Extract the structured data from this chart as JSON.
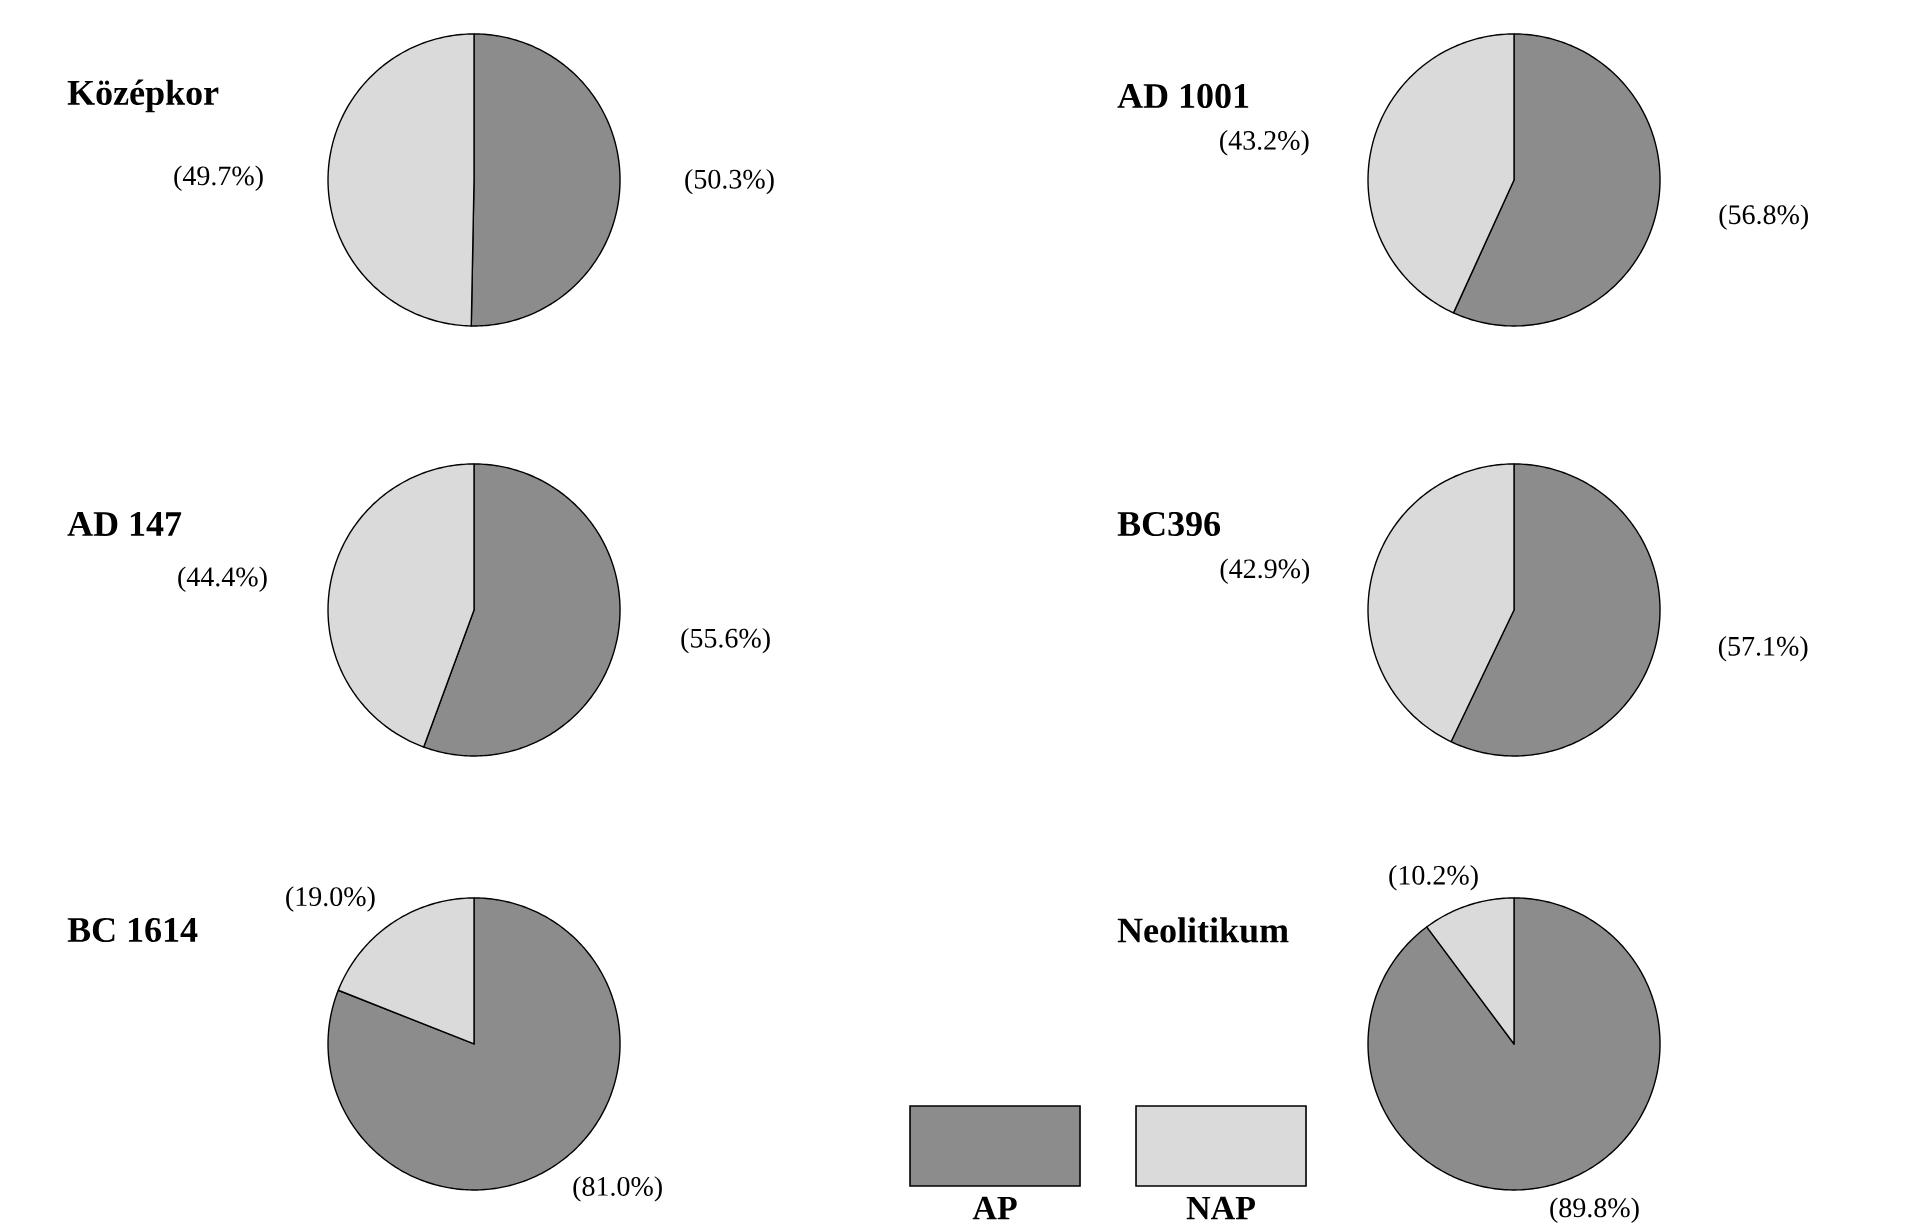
{
  "chart_data": [
    {
      "type": "pie",
      "title": "Középkor",
      "categories": [
        null,
        null
      ],
      "values": [
        50.3,
        49.7
      ],
      "colors": [
        "#8c8c8c",
        "#dadada"
      ],
      "value_labels": [
        "(50.3%)",
        "(49.7%)"
      ]
    },
    {
      "type": "pie",
      "title": "AD 1001",
      "categories": [
        null,
        null
      ],
      "values": [
        56.8,
        43.2
      ],
      "colors": [
        "#8c8c8c",
        "#dadada"
      ],
      "value_labels": [
        "(56.8%)",
        "(43.2%)"
      ]
    },
    {
      "type": "pie",
      "title": "AD 147",
      "categories": [
        null,
        null
      ],
      "values": [
        55.6,
        44.4
      ],
      "colors": [
        "#8c8c8c",
        "#dadada"
      ],
      "value_labels": [
        "(55.6%)",
        "(44.4%)"
      ]
    },
    {
      "type": "pie",
      "title": "BC396",
      "categories": [
        null,
        null
      ],
      "values": [
        57.1,
        42.9
      ],
      "colors": [
        "#8c8c8c",
        "#dadada"
      ],
      "value_labels": [
        "(57.1%)",
        "(42.9%)"
      ]
    },
    {
      "type": "pie",
      "title": "BC 1614",
      "categories": [
        "AP",
        "NAP"
      ],
      "values": [
        81.0,
        19.0
      ],
      "colors": [
        "#8c8c8c",
        "#dadada"
      ],
      "value_labels": [
        "(81.0%)",
        "(19.0%)"
      ],
      "legend": "right"
    },
    {
      "type": "pie",
      "title": "Neolitikum",
      "categories": [
        null,
        null
      ],
      "values": [
        89.8,
        10.2
      ],
      "colors": [
        "#8c8c8c",
        "#dadada"
      ],
      "value_labels": [
        "(89.8%)",
        "(10.2%)"
      ]
    }
  ]
}
